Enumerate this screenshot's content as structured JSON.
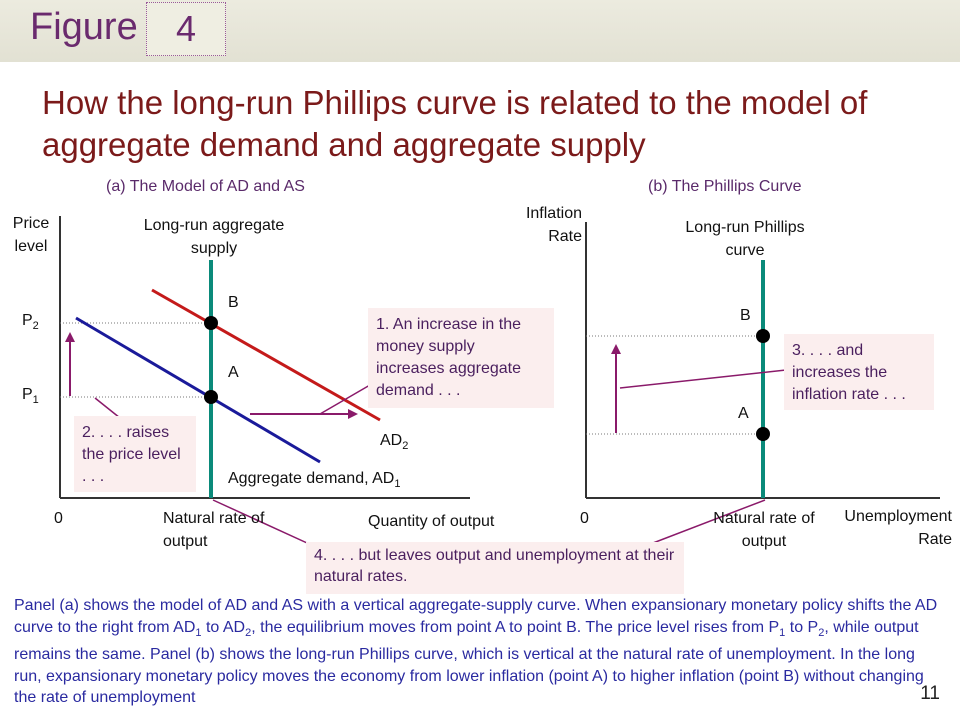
{
  "header": {
    "figure_word": "Figure",
    "figure_number": "4",
    "title": "How the long-run Phillips curve is related to the model of aggregate demand and aggregate supply"
  },
  "panel_a": {
    "heading": "(a) The Model of AD and AS",
    "y_axis_label": "Price level",
    "x_axis_label": "Quantity of output",
    "origin": "0",
    "p2": "P",
    "p2_sub": "2",
    "p1": "P",
    "p1_sub": "1",
    "lras_label": "Long-run aggregate supply",
    "point_b": "B",
    "point_a": "A",
    "ad2_label": "AD",
    "ad2_sub": "2",
    "ad1_label": "Aggregate demand, AD",
    "ad1_sub": "1",
    "natural_rate_label": "Natural rate of output",
    "note_1": "1. An increase in the money supply increases aggregate demand . . .",
    "note_2": "2. . . . raises the price level . . ."
  },
  "panel_b": {
    "heading": "(b) The Phillips Curve",
    "y_axis_label": "Inflation Rate",
    "x_axis_label": "Unemployment Rate",
    "origin": "0",
    "lrpc_label": "Long-run Phillips curve",
    "point_b": "B",
    "point_a": "A",
    "natural_rate_label": "Natural rate of output",
    "note_3": "3. . . . and increases the inflation rate . . ."
  },
  "note_4": "4. . . . but leaves output and unemployment at their natural rates.",
  "caption": {
    "t1": "Panel (a) shows the model of AD and AS with a vertical aggregate-supply curve. When expansionary monetary policy shifts the AD curve to the right from AD",
    "s1": "1",
    "t2": " to AD",
    "s2": "2",
    "t3": ", the equilibrium moves from point A to point B. The price level rises from P",
    "s3": "1",
    "t4": " to P",
    "s4": "2",
    "t5": ", while output remains the same. Panel (b) shows the long-run Phillips curve, which is vertical at the natural rate of unemployment. In the long run, expansionary monetary policy moves the economy from lower inflation (point A) to higher inflation (point B) without changing the rate of unemployment"
  },
  "page_number": "11",
  "colors": {
    "title": "#7b1a1a",
    "figure": "#6a2a6e",
    "lras": "#0a8a7a",
    "ad1": "#1a1a9a",
    "ad2": "#c41a1a",
    "arrows": "#8a1a6a",
    "note_text": "#4a1f5e",
    "note_bg": "#fbeeee",
    "caption": "#2a2aa0"
  }
}
